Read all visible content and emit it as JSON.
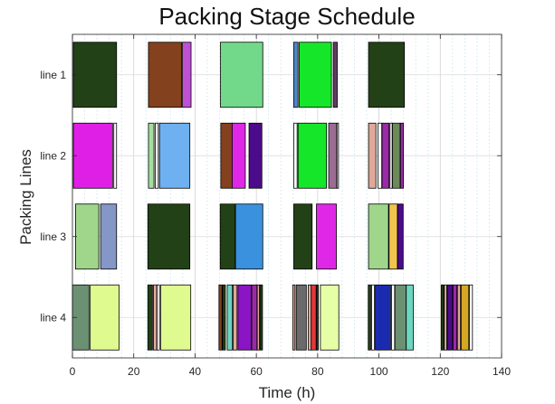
{
  "chart_data": {
    "type": "gantt",
    "title": "Packing Stage Schedule",
    "xlabel": "Time (h)",
    "ylabel": "Packing Lines",
    "xlim": [
      0,
      140
    ],
    "xticks": [
      0,
      20,
      40,
      60,
      80,
      100,
      120,
      140
    ],
    "categories": [
      "line 1",
      "line 2",
      "line 3",
      "line 4"
    ],
    "grid": true,
    "minor_grid": true,
    "tasks": [
      {
        "line": "line 1",
        "start": 0.3,
        "end": 14.4,
        "color": "#234116"
      },
      {
        "line": "line 1",
        "start": 24.8,
        "end": 35.6,
        "color": "#84411d"
      },
      {
        "line": "line 1",
        "start": 35.9,
        "end": 38.7,
        "color": "#c04fd8"
      },
      {
        "line": "line 1",
        "start": 48.3,
        "end": 62.1,
        "color": "#72d98b"
      },
      {
        "line": "line 1",
        "start": 72.2,
        "end": 73.6,
        "color": "#4d87c7"
      },
      {
        "line": "line 1",
        "start": 74.0,
        "end": 84.5,
        "color": "#15e62a"
      },
      {
        "line": "line 1",
        "start": 85.1,
        "end": 86.4,
        "color": "#5c3d63"
      },
      {
        "line": "line 1",
        "start": 96.6,
        "end": 108.3,
        "color": "#234116"
      },
      {
        "line": "line 2",
        "start": 0.3,
        "end": 13.1,
        "color": "#e01fe6"
      },
      {
        "line": "line 2",
        "start": 13.5,
        "end": 14.4,
        "color": "#ffffff"
      },
      {
        "line": "line 2",
        "start": 24.8,
        "end": 26.6,
        "color": "#a5df9e"
      },
      {
        "line": "line 2",
        "start": 27.0,
        "end": 28.0,
        "color": "#ffffff"
      },
      {
        "line": "line 2",
        "start": 28.4,
        "end": 38.3,
        "color": "#6fb0f0"
      },
      {
        "line": "line 2",
        "start": 48.4,
        "end": 52.1,
        "color": "#84411d"
      },
      {
        "line": "line 2",
        "start": 52.1,
        "end": 56.4,
        "color": "#df28e6"
      },
      {
        "line": "line 2",
        "start": 57.6,
        "end": 61.8,
        "color": "#4b0b8a"
      },
      {
        "line": "line 2",
        "start": 72.2,
        "end": 73.3,
        "color": "#ffffff"
      },
      {
        "line": "line 2",
        "start": 73.6,
        "end": 82.9,
        "color": "#15e62a"
      },
      {
        "line": "line 2",
        "start": 83.6,
        "end": 86.2,
        "color": "#9b6d94"
      },
      {
        "line": "line 2",
        "start": 86.3,
        "end": 86.8,
        "color": "#ffffff"
      },
      {
        "line": "line 2",
        "start": 96.6,
        "end": 99.0,
        "color": "#e0a899"
      },
      {
        "line": "line 2",
        "start": 99.7,
        "end": 100.9,
        "color": "#ffffff"
      },
      {
        "line": "line 2",
        "start": 101.0,
        "end": 103.3,
        "color": "#9a2aa6"
      },
      {
        "line": "line 2",
        "start": 103.6,
        "end": 104.3,
        "color": "#ffffff"
      },
      {
        "line": "line 2",
        "start": 104.4,
        "end": 106.9,
        "color": "#6d8a5a"
      },
      {
        "line": "line 2",
        "start": 107.0,
        "end": 108.0,
        "color": "#9a2aa6"
      },
      {
        "line": "line 3",
        "start": 1.0,
        "end": 8.6,
        "color": "#9fd68c"
      },
      {
        "line": "line 3",
        "start": 9.2,
        "end": 14.4,
        "color": "#8597c6"
      },
      {
        "line": "line 3",
        "start": 24.6,
        "end": 38.3,
        "color": "#234116"
      },
      {
        "line": "line 3",
        "start": 48.2,
        "end": 53.1,
        "color": "#234116"
      },
      {
        "line": "line 3",
        "start": 53.2,
        "end": 62.1,
        "color": "#3a91de"
      },
      {
        "line": "line 3",
        "start": 72.2,
        "end": 78.2,
        "color": "#234116"
      },
      {
        "line": "line 3",
        "start": 79.6,
        "end": 86.1,
        "color": "#df28e6"
      },
      {
        "line": "line 3",
        "start": 96.6,
        "end": 103.1,
        "color": "#9fd68c"
      },
      {
        "line": "line 3",
        "start": 103.3,
        "end": 106.0,
        "color": "#f0c44f"
      },
      {
        "line": "line 3",
        "start": 106.1,
        "end": 107.9,
        "color": "#4b0b8a"
      },
      {
        "line": "line 4",
        "start": 0.0,
        "end": 5.4,
        "color": "#6b9172"
      },
      {
        "line": "line 4",
        "start": 5.8,
        "end": 15.2,
        "color": "#dffa8f"
      },
      {
        "line": "line 4",
        "start": 24.6,
        "end": 26.1,
        "color": "#234116"
      },
      {
        "line": "line 4",
        "start": 26.4,
        "end": 27.5,
        "color": "#e0a899"
      },
      {
        "line": "line 4",
        "start": 27.6,
        "end": 28.4,
        "color": "#ffffff"
      },
      {
        "line": "line 4",
        "start": 28.8,
        "end": 38.6,
        "color": "#dffa8f"
      },
      {
        "line": "line 4",
        "start": 47.8,
        "end": 48.8,
        "color": "#84411d"
      },
      {
        "line": "line 4",
        "start": 49.0,
        "end": 49.9,
        "color": "#234116"
      },
      {
        "line": "line 4",
        "start": 50.5,
        "end": 52.2,
        "color": "#6cd6c0"
      },
      {
        "line": "line 4",
        "start": 52.4,
        "end": 53.7,
        "color": "#e0a899"
      },
      {
        "line": "line 4",
        "start": 54.0,
        "end": 58.3,
        "color": "#8b14c4"
      },
      {
        "line": "line 4",
        "start": 58.5,
        "end": 60.2,
        "color": "#9a2aa6"
      },
      {
        "line": "line 4",
        "start": 60.3,
        "end": 61.0,
        "color": "#e0a899"
      },
      {
        "line": "line 4",
        "start": 61.2,
        "end": 62.0,
        "color": "#234116"
      },
      {
        "line": "line 4",
        "start": 71.9,
        "end": 72.6,
        "color": "#e0a899"
      },
      {
        "line": "line 4",
        "start": 73.0,
        "end": 76.3,
        "color": "#6b6b6b"
      },
      {
        "line": "line 4",
        "start": 76.9,
        "end": 77.9,
        "color": "#e0a899"
      },
      {
        "line": "line 4",
        "start": 77.9,
        "end": 79.5,
        "color": "#e03a3a"
      },
      {
        "line": "line 4",
        "start": 79.6,
        "end": 80.2,
        "color": "#4a2a1a"
      },
      {
        "line": "line 4",
        "start": 80.9,
        "end": 86.9,
        "color": "#e6ffa6"
      },
      {
        "line": "line 4",
        "start": 96.5,
        "end": 97.3,
        "color": "#234116"
      },
      {
        "line": "line 4",
        "start": 97.6,
        "end": 98.5,
        "color": "#ffffff"
      },
      {
        "line": "line 4",
        "start": 98.8,
        "end": 103.8,
        "color": "#1a2bb0"
      },
      {
        "line": "line 4",
        "start": 104.1,
        "end": 105.1,
        "color": "#ffffff"
      },
      {
        "line": "line 4",
        "start": 105.2,
        "end": 108.9,
        "color": "#6b9172"
      },
      {
        "line": "line 4",
        "start": 108.9,
        "end": 111.2,
        "color": "#6cd6c0"
      },
      {
        "line": "line 4",
        "start": 120.3,
        "end": 121.1,
        "color": "#234116"
      },
      {
        "line": "line 4",
        "start": 121.3,
        "end": 122.1,
        "color": "#e0a899"
      },
      {
        "line": "line 4",
        "start": 122.3,
        "end": 124.0,
        "color": "#4b0b8a"
      },
      {
        "line": "line 4",
        "start": 124.2,
        "end": 125.4,
        "color": "#9a2aa6"
      },
      {
        "line": "line 4",
        "start": 125.6,
        "end": 126.6,
        "color": "#e0a899"
      },
      {
        "line": "line 4",
        "start": 126.8,
        "end": 129.3,
        "color": "#d4a820"
      },
      {
        "line": "line 4",
        "start": 129.5,
        "end": 130.5,
        "color": "#ffffff"
      }
    ]
  }
}
